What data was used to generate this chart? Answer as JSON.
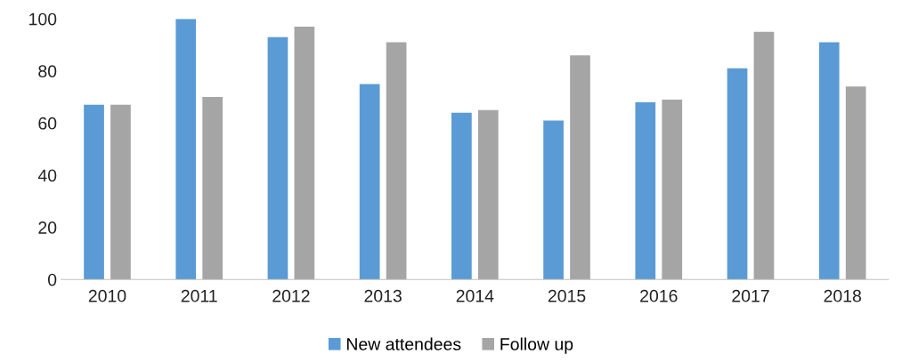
{
  "chart_data": {
    "type": "bar",
    "categories": [
      "2010",
      "2011",
      "2012",
      "2013",
      "2014",
      "2015",
      "2016",
      "2017",
      "2018"
    ],
    "series": [
      {
        "name": "New attendees",
        "color": "#5b9bd5",
        "values": [
          67,
          100,
          93,
          75,
          64,
          61,
          68,
          81,
          91
        ]
      },
      {
        "name": "Follow up",
        "color": "#a5a5a5",
        "values": [
          67,
          70,
          97,
          91,
          65,
          86,
          69,
          95,
          74
        ]
      }
    ],
    "ylim": [
      0,
      100
    ],
    "yticks": [
      0,
      20,
      40,
      60,
      80,
      100
    ],
    "grid": false,
    "legend": "bottom"
  }
}
